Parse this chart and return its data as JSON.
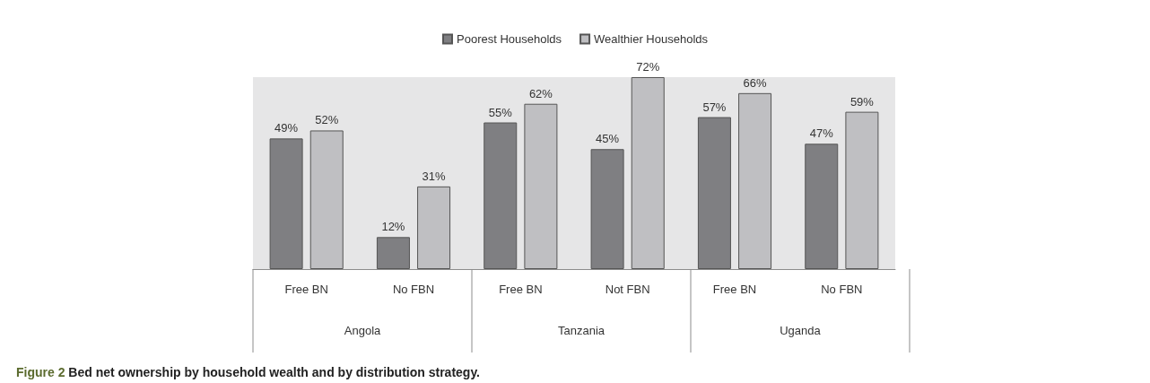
{
  "chart_data": {
    "type": "bar",
    "categories": [
      "Free BN",
      "No FBN",
      "Free BN",
      "Not FBN",
      "Free BN",
      "No FBN"
    ],
    "series": [
      {
        "name": "Poorest Households",
        "color": "#7f7f82",
        "values": [
          49,
          12,
          55,
          45,
          57,
          47
        ],
        "value_labels": [
          "49%",
          "12%",
          "55%",
          "45%",
          "57%",
          "47%"
        ]
      },
      {
        "name": "Wealthier Households",
        "color": "#bfbfc2",
        "values": [
          52,
          31,
          62,
          72,
          66,
          59
        ],
        "value_labels": [
          "52%",
          "31%",
          "62%",
          "72%",
          "66%",
          "59%"
        ]
      }
    ],
    "annotations": [
      "Angola",
      "Tanzania",
      "Uganda",
      "Figure 2 Bed net ownership by household wealth and by distribution strategy."
    ],
    "legend": "top",
    "grid": false
  }
}
